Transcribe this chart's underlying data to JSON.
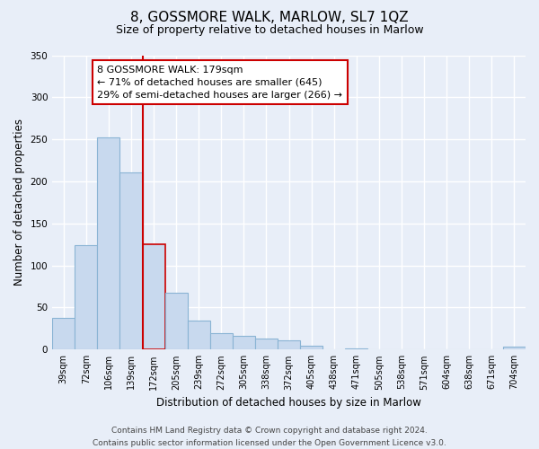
{
  "title": "8, GOSSMORE WALK, MARLOW, SL7 1QZ",
  "subtitle": "Size of property relative to detached houses in Marlow",
  "xlabel": "Distribution of detached houses by size in Marlow",
  "ylabel": "Number of detached properties",
  "bin_labels": [
    "39sqm",
    "72sqm",
    "106sqm",
    "139sqm",
    "172sqm",
    "205sqm",
    "239sqm",
    "272sqm",
    "305sqm",
    "338sqm",
    "372sqm",
    "405sqm",
    "438sqm",
    "471sqm",
    "505sqm",
    "538sqm",
    "571sqm",
    "604sqm",
    "638sqm",
    "671sqm",
    "704sqm"
  ],
  "bar_values": [
    38,
    124,
    252,
    211,
    125,
    68,
    35,
    20,
    16,
    13,
    11,
    5,
    0,
    1,
    0,
    0,
    0,
    0,
    0,
    0,
    4
  ],
  "bar_color": "#c8d9ee",
  "bar_edge_color": "#8ab4d4",
  "highlight_bar_index": 4,
  "highlight_bar_edge_color": "#cc0000",
  "vline_color": "#cc0000",
  "annotation_lines": [
    "8 GOSSMORE WALK: 179sqm",
    "← 71% of detached houses are smaller (645)",
    "29% of semi-detached houses are larger (266) →"
  ],
  "annotation_box_color": "#ffffff",
  "annotation_box_edge_color": "#cc0000",
  "ylim": [
    0,
    350
  ],
  "yticks": [
    0,
    50,
    100,
    150,
    200,
    250,
    300,
    350
  ],
  "footer_line1": "Contains HM Land Registry data © Crown copyright and database right 2024.",
  "footer_line2": "Contains public sector information licensed under the Open Government Licence v3.0.",
  "bg_color": "#e8eef8",
  "grid_color": "#ffffff",
  "title_fontsize": 11,
  "subtitle_fontsize": 9,
  "axis_label_fontsize": 8.5,
  "tick_fontsize": 7,
  "annotation_fontsize": 8,
  "footer_fontsize": 6.5
}
